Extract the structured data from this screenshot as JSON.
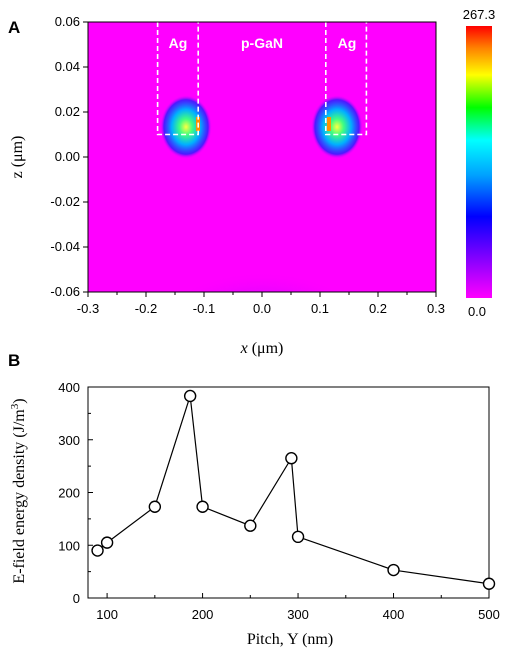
{
  "chart_data": [
    {
      "panel": "A",
      "type": "heatmap",
      "xlabel_var": "x",
      "xlabel_unit": "(μm)",
      "ylabel": "z (μm)",
      "xlim": [
        -0.3,
        0.3
      ],
      "ylim": [
        -0.06,
        0.06
      ],
      "xticks": [
        "-0.3",
        "-0.2",
        "-0.1",
        "0.0",
        "0.1",
        "0.2",
        "0.3"
      ],
      "yticks": [
        "0.06",
        "0.04",
        "0.02",
        "0.00",
        "-0.02",
        "-0.04",
        "-0.06"
      ],
      "colorbar": {
        "max": "267.3",
        "min": "0.0"
      },
      "region_labels": [
        "Ag",
        "p-GaN",
        "Ag"
      ],
      "ag_regions": [
        {
          "x": [
            -0.18,
            -0.11
          ],
          "z": [
            0.01,
            0.06
          ]
        },
        {
          "x": [
            0.11,
            0.18
          ],
          "z": [
            0.01,
            0.06
          ]
        }
      ],
      "colors": {
        "background": "#ff00ff",
        "hotspot_core": "#ffff00",
        "hotspot_mid": "#00ff80",
        "hotspot_outer": "#0080ff",
        "bottom_glow": "#2040ff"
      }
    },
    {
      "panel": "B",
      "type": "line",
      "xlabel": "Pitch, Y (nm)",
      "ylabel": "E-field energy density (J/m",
      "ylabel_sup": "3",
      "ylabel_close": ")",
      "xlim": [
        80,
        500
      ],
      "ylim": [
        0,
        400
      ],
      "xticks": [
        "100",
        "200",
        "300",
        "400",
        "500"
      ],
      "yticks": [
        "0",
        "100",
        "200",
        "300",
        "400"
      ],
      "x": [
        90,
        100,
        150,
        187,
        200,
        250,
        293,
        300,
        400,
        500
      ],
      "y": [
        90,
        105,
        173,
        383,
        173,
        137,
        265,
        116,
        53,
        27
      ],
      "marker": "open-circle"
    }
  ]
}
